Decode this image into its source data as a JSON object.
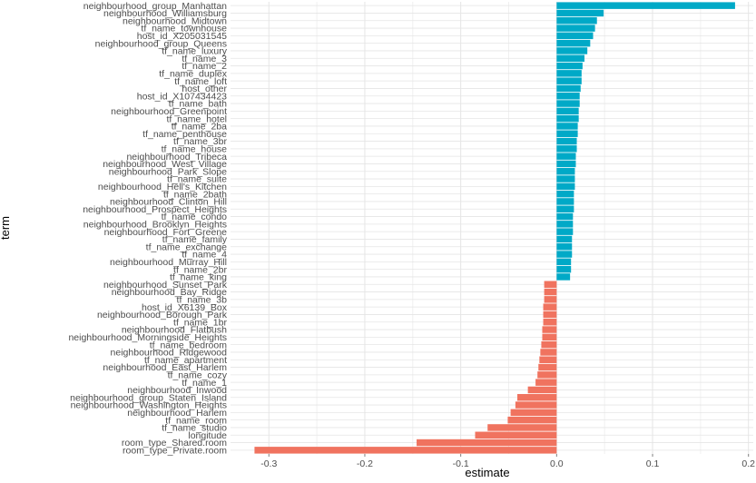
{
  "chart_data": {
    "type": "bar",
    "orientation": "horizontal",
    "xlabel": "estimate",
    "ylabel": "term",
    "xlim": [
      -0.34,
      0.205
    ],
    "xticks": [
      -0.3,
      -0.2,
      -0.1,
      0.0,
      0.1,
      0.2
    ],
    "xtick_labels": [
      "-0.3",
      "-0.2",
      "-0.1",
      "0.0",
      "0.1",
      "0.2"
    ],
    "grid": true,
    "colors": {
      "positive": "#00a9c7",
      "negative": "#f0735f",
      "grid": "#e5e5e5",
      "background": "#ffffff"
    },
    "categories": [
      "neighbourhood_group_Manhattan",
      "neighbourhood_Williamsburg",
      "neighbourhood_Midtown",
      "tf_name_townhouse",
      "host_id_X205031545",
      "neighbourhood_group_Queens",
      "tf_name_luxury",
      "tf_name_3",
      "tf_name_2",
      "tf_name_duplex",
      "tf_name_loft",
      "host_other",
      "host_id_X107434423",
      "tf_name_bath",
      "neighbourhood_Greenpoint",
      "tf_name_hotel",
      "tf_name_2ba",
      "tf_name_penthouse",
      "tf_name_3br",
      "tf_name_house",
      "neighbourhood_Tribeca",
      "neighbourhood_West_Village",
      "neighbourhood_Park_Slope",
      "tf_name_suite",
      "neighbourhood_Hell's_Kitchen",
      "tf_name_2bath",
      "neighbourhood_Clinton_Hill",
      "neighbourhood_Prospect_Heights",
      "tf_name_condo",
      "neighbourhood_Brooklyn_Heights",
      "neighbourhood_Fort_Greene",
      "tf_name_family",
      "tf_name_exchange",
      "tf_name_4",
      "neighbourhood_Murray_Hill",
      "tf_name_2br",
      "tf_name_king",
      "neighbourhood_Sunset_Park",
      "neighbourhood_Bay_Ridge",
      "tf_name_3b",
      "host_id_X6139_Box",
      "neighbourhood_Borough_Park",
      "tf_name_1br",
      "neighbourhood_Flatbush",
      "neighbourhood_Morningside_Heights",
      "tf_name_bedroom",
      "neighbourhood_Ridgewood",
      "tf_name_apartment",
      "neighbourhood_East_Harlem",
      "tf_name_cozy",
      "tf_name_1",
      "neighbourhood_Inwood",
      "neighbourhood_group_Staten_Island",
      "neighbourhood_Washington_Heights",
      "neighbourhood_Harlem",
      "tf_name_room",
      "tf_name_studio",
      "longitude",
      "room_type_Shared.room",
      "room_type_Private.room"
    ],
    "values": [
      0.186,
      0.049,
      0.042,
      0.04,
      0.038,
      0.035,
      0.032,
      0.029,
      0.027,
      0.026,
      0.026,
      0.025,
      0.024,
      0.024,
      0.023,
      0.023,
      0.022,
      0.022,
      0.021,
      0.021,
      0.02,
      0.02,
      0.019,
      0.019,
      0.019,
      0.018,
      0.018,
      0.018,
      0.017,
      0.017,
      0.017,
      0.016,
      0.016,
      0.016,
      0.015,
      0.015,
      0.014,
      -0.013,
      -0.013,
      -0.013,
      -0.014,
      -0.014,
      -0.014,
      -0.015,
      -0.015,
      -0.016,
      -0.017,
      -0.018,
      -0.019,
      -0.02,
      -0.022,
      -0.03,
      -0.041,
      -0.043,
      -0.048,
      -0.051,
      -0.072,
      -0.085,
      -0.146,
      -0.315
    ]
  }
}
